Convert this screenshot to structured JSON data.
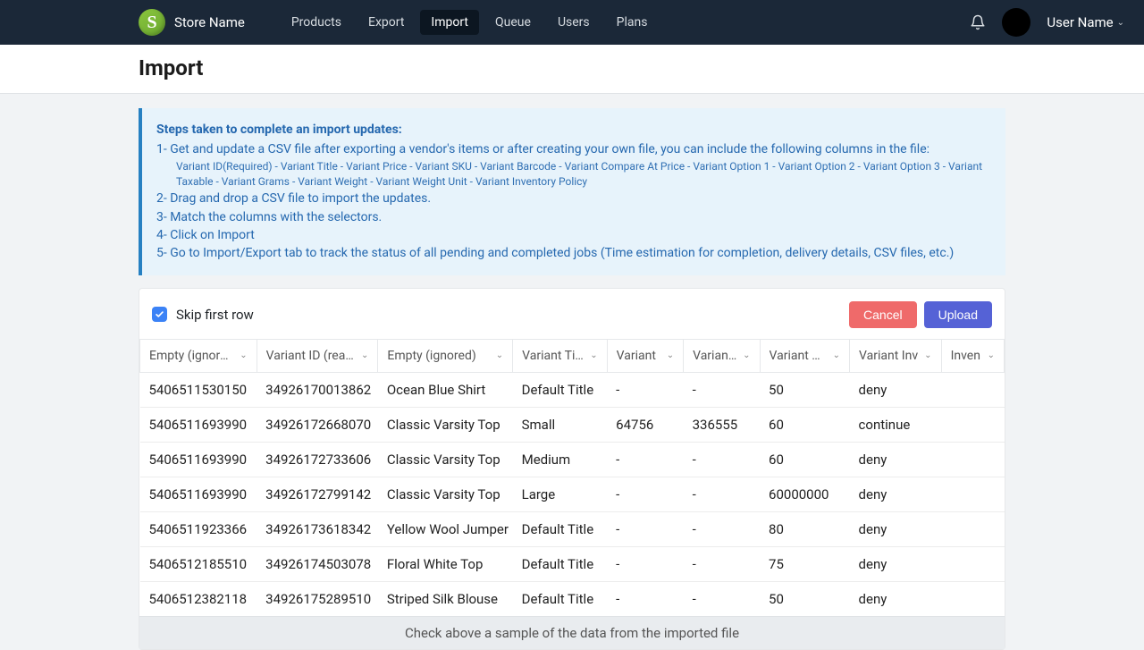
{
  "brand": {
    "logo_letter": "S",
    "name": "Store Name"
  },
  "nav": {
    "items": [
      {
        "label": "Products",
        "active": false
      },
      {
        "label": "Export",
        "active": false
      },
      {
        "label": "Import",
        "active": true
      },
      {
        "label": "Queue",
        "active": false
      },
      {
        "label": "Users",
        "active": false
      },
      {
        "label": "Plans",
        "active": false
      }
    ]
  },
  "user": {
    "name": "User Name"
  },
  "page": {
    "title": "Import"
  },
  "alert": {
    "title": "Steps taken to complete an import updates:",
    "step1": "1- Get and update a CSV file after exporting a vendor's items or after creating your own file, you can include the following columns in the file:",
    "step1_sub": "Variant ID(Required) - Variant Title - Variant Price - Variant SKU - Variant Barcode - Variant Compare At Price - Variant Option 1 - Variant Option 2 - Variant Option 3 - Variant Taxable - Variant Grams - Variant Weight - Variant Weight Unit - Variant Inventory Policy",
    "step2": "2- Drag and drop a CSV file to import the updates.",
    "step3": "3- Match the columns with the selectors.",
    "step4": "4- Click on Import",
    "step5": "5- Go to Import/Export tab to track the status of all pending and completed jobs (Time estimation for completion, delivery details, CSV files, etc.)"
  },
  "actions": {
    "skip_label": "Skip first row",
    "skip_checked": true,
    "cancel": "Cancel",
    "upload": "Upload"
  },
  "columns": [
    "Empty (ignored)",
    "Variant ID (read)",
    "Empty (ignored)",
    "Variant Title (",
    "Variant",
    "Variant B",
    "Variant Pric",
    "Variant Inv",
    "Inven"
  ],
  "rows": [
    [
      "5406511530150",
      "34926170013862",
      "Ocean Blue Shirt",
      "Default Title",
      "-",
      "-",
      "50",
      "deny",
      ""
    ],
    [
      "5406511693990",
      "34926172668070",
      "Classic Varsity Top",
      "Small",
      "64756",
      "336555",
      "60",
      "continue",
      ""
    ],
    [
      "5406511693990",
      "34926172733606",
      "Classic Varsity Top",
      "Medium",
      "-",
      "-",
      "60",
      "deny",
      ""
    ],
    [
      "5406511693990",
      "34926172799142",
      "Classic Varsity Top",
      "Large",
      "-",
      "-",
      "60000000",
      "deny",
      ""
    ],
    [
      "5406511923366",
      "34926173618342",
      "Yellow Wool Jumper",
      "Default Title",
      "-",
      "-",
      "80",
      "deny",
      ""
    ],
    [
      "5406512185510",
      "34926174503078",
      "Floral White Top",
      "Default Title",
      "-",
      "-",
      "75",
      "deny",
      ""
    ],
    [
      "5406512382118",
      "34926175289510",
      "Striped Silk Blouse",
      "Default Title",
      "-",
      "-",
      "50",
      "deny",
      ""
    ]
  ],
  "footer_note": "Check above a sample of the data from the imported file",
  "colors": {
    "nav_bg": "#1b2838",
    "alert_bg": "#e7f3fb",
    "alert_border": "#2680c2",
    "cancel_btn": "#ef6a6a",
    "upload_btn": "#5562d6",
    "checkbox": "#3b82f6"
  }
}
